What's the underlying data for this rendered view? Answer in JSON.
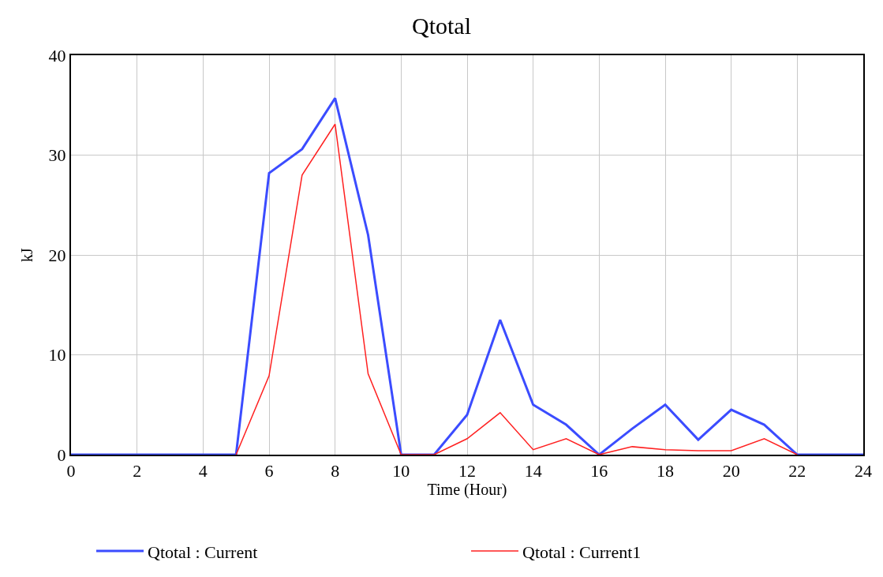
{
  "chart_data": {
    "type": "line",
    "title": "Qtotal",
    "xlabel": "Time (Hour)",
    "ylabel": "kJ",
    "x": [
      0,
      1,
      2,
      3,
      4,
      5,
      6,
      7,
      8,
      9,
      10,
      11,
      12,
      13,
      14,
      15,
      16,
      17,
      18,
      19,
      20,
      21,
      22,
      23,
      24
    ],
    "series": [
      {
        "name": "Qtotal : Current",
        "color": "#3b4cff",
        "values": [
          0,
          0,
          0,
          0,
          0,
          0,
          28.2,
          30.6,
          35.7,
          22,
          0,
          0,
          4,
          13.5,
          5,
          3,
          0,
          2.6,
          5,
          1.5,
          4.5,
          3,
          0,
          0,
          0
        ]
      },
      {
        "name": "Qtotal : Current1",
        "color": "#ff2020",
        "values": [
          null,
          null,
          null,
          null,
          null,
          0,
          7.9,
          28,
          33.1,
          8.1,
          0,
          0,
          1.6,
          4.2,
          0.5,
          1.6,
          0,
          0.8,
          0.5,
          0.4,
          0.4,
          1.6,
          0,
          null,
          null
        ]
      }
    ],
    "xlim": [
      0,
      24
    ],
    "xticks": [
      0,
      2,
      4,
      6,
      8,
      10,
      12,
      14,
      16,
      18,
      20,
      22,
      24
    ],
    "ylim": [
      0,
      40
    ],
    "yticks": [
      0,
      10,
      20,
      30,
      40
    ],
    "grid": true,
    "legend": "bottom",
    "marker": "none",
    "line_style": "solid"
  }
}
